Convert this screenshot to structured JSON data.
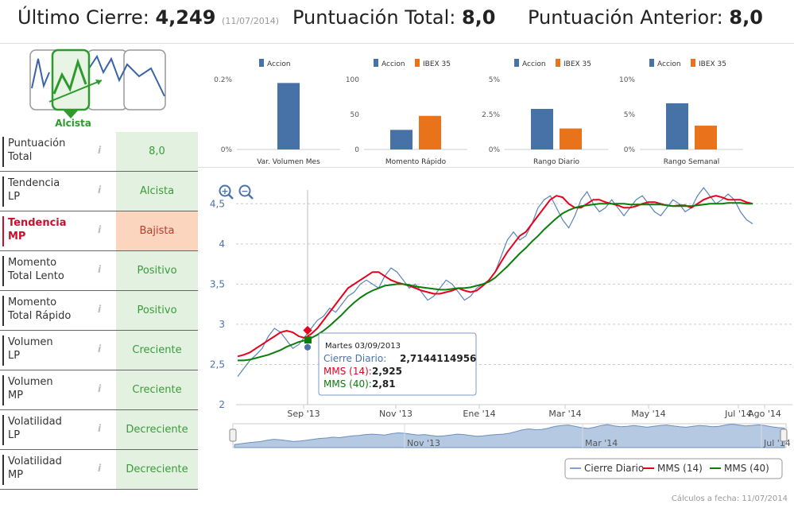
{
  "header": {
    "last_close_label": "Último Cierre:",
    "last_close_value": "4,249",
    "last_close_date": "(11/07/2014)",
    "total_score_label": "Puntuación Total:",
    "total_score_value": "8,0",
    "prev_score_label": "Puntuación Anterior:",
    "prev_score_value": "8,0"
  },
  "trend_card": {
    "label": "Alcista",
    "color": "#2e9a2e"
  },
  "indicators": [
    {
      "label1": "Puntuación",
      "label2": "Total",
      "value": "8,0",
      "highlight": false
    },
    {
      "label1": "Tendencia",
      "label2": "LP",
      "value": "Alcista",
      "highlight": false
    },
    {
      "label1": "Tendencia",
      "label2": "MP",
      "value": "Bajista",
      "highlight": true
    },
    {
      "label1": "Momento",
      "label2": "Total Lento",
      "value": "Positivo",
      "highlight": false
    },
    {
      "label1": "Momento",
      "label2": "Total Rápido",
      "value": "Positivo",
      "highlight": false
    },
    {
      "label1": "Volumen",
      "label2": "LP",
      "value": "Creciente",
      "highlight": false
    },
    {
      "label1": "Volumen",
      "label2": "MP",
      "value": "Creciente",
      "highlight": false
    },
    {
      "label1": "Volatilidad",
      "label2": "LP",
      "value": "Decreciente",
      "highlight": false
    },
    {
      "label1": "Volatilidad",
      "label2": "MP",
      "value": "Decreciente",
      "highlight": false
    }
  ],
  "info_icon": "i",
  "colors": {
    "accion": "#4672a8",
    "ibex": "#e8731a",
    "close": "#5b84b8",
    "mms14": "#e8001c",
    "mms40": "#0b7d0b"
  },
  "chart_data": [
    {
      "type": "bar",
      "title": "Var. Volumen Mes",
      "series": [
        {
          "name": "Accion",
          "values": [
            0.19
          ]
        }
      ],
      "ylim": [
        0,
        0.2
      ],
      "ticks": [
        "0.2%",
        "0%"
      ]
    },
    {
      "type": "bar",
      "title": "Momento Rápido",
      "series": [
        {
          "name": "Accion",
          "values": [
            28
          ]
        },
        {
          "name": "IBEX 35",
          "values": [
            48
          ]
        }
      ],
      "ylim": [
        0,
        100
      ],
      "ticks": [
        "100",
        "50",
        "0"
      ]
    },
    {
      "type": "bar",
      "title": "Rango Diario",
      "series": [
        {
          "name": "Accion",
          "values": [
            2.9
          ]
        },
        {
          "name": "IBEX 35",
          "values": [
            1.5
          ]
        }
      ],
      "ylim": [
        0,
        5
      ],
      "ticks": [
        "5%",
        "2.5%",
        "0%"
      ]
    },
    {
      "type": "bar",
      "title": "Rango Semanal",
      "series": [
        {
          "name": "Accion",
          "values": [
            6.6
          ]
        },
        {
          "name": "IBEX 35",
          "values": [
            3.4
          ]
        }
      ],
      "ylim": [
        0,
        10
      ],
      "ticks": [
        "10%",
        "5%",
        "0%"
      ]
    },
    {
      "type": "line",
      "ylim": [
        2,
        4.75
      ],
      "yticks": [
        "4,5",
        "4",
        "3,5",
        "3",
        "2,5",
        "2"
      ],
      "xticks": [
        "Sep '13",
        "Nov '13",
        "Ene '14",
        "Mar '14",
        "May '14",
        "Jul '14",
        "Ago '14"
      ],
      "navigator_labels": [
        "Nov '13",
        "Mar '14",
        "Jul '14"
      ],
      "series": [
        {
          "name": "Cierre Diario",
          "values": [
            2.35,
            2.45,
            2.55,
            2.62,
            2.7,
            2.85,
            2.95,
            2.9,
            2.8,
            2.7,
            2.75,
            2.85,
            2.95,
            3.05,
            3.1,
            3.2,
            3.15,
            3.25,
            3.35,
            3.4,
            3.5,
            3.55,
            3.5,
            3.45,
            3.6,
            3.7,
            3.65,
            3.55,
            3.45,
            3.5,
            3.4,
            3.3,
            3.35,
            3.45,
            3.55,
            3.5,
            3.4,
            3.3,
            3.35,
            3.45,
            3.5,
            3.55,
            3.65,
            3.85,
            4.05,
            4.15,
            4.05,
            4.1,
            4.25,
            4.45,
            4.55,
            4.6,
            4.45,
            4.3,
            4.2,
            4.35,
            4.55,
            4.65,
            4.5,
            4.4,
            4.45,
            4.55,
            4.45,
            4.35,
            4.45,
            4.55,
            4.6,
            4.5,
            4.4,
            4.35,
            4.45,
            4.55,
            4.5,
            4.4,
            4.45,
            4.6,
            4.7,
            4.6,
            4.5,
            4.55,
            4.62,
            4.55,
            4.4,
            4.3,
            4.25
          ]
        },
        {
          "name": "MMS (14)",
          "values": [
            2.6,
            2.62,
            2.65,
            2.7,
            2.75,
            2.8,
            2.85,
            2.9,
            2.92,
            2.9,
            2.85,
            2.83,
            2.88,
            2.95,
            3.05,
            3.15,
            3.25,
            3.35,
            3.45,
            3.5,
            3.55,
            3.6,
            3.65,
            3.65,
            3.6,
            3.55,
            3.52,
            3.5,
            3.48,
            3.45,
            3.42,
            3.4,
            3.38,
            3.38,
            3.4,
            3.42,
            3.45,
            3.42,
            3.4,
            3.42,
            3.48,
            3.55,
            3.65,
            3.78,
            3.9,
            4.0,
            4.1,
            4.15,
            4.25,
            4.35,
            4.45,
            4.55,
            4.6,
            4.58,
            4.5,
            4.45,
            4.45,
            4.5,
            4.55,
            4.55,
            4.52,
            4.5,
            4.48,
            4.45,
            4.45,
            4.47,
            4.5,
            4.52,
            4.52,
            4.5,
            4.48,
            4.47,
            4.48,
            4.48,
            4.45,
            4.5,
            4.55,
            4.58,
            4.6,
            4.58,
            4.55,
            4.55,
            4.55,
            4.52,
            4.5
          ]
        },
        {
          "name": "MMS (40)",
          "values": [
            2.55,
            2.55,
            2.56,
            2.58,
            2.6,
            2.62,
            2.65,
            2.68,
            2.72,
            2.75,
            2.78,
            2.8,
            2.83,
            2.87,
            2.92,
            2.98,
            3.05,
            3.12,
            3.2,
            3.27,
            3.33,
            3.38,
            3.42,
            3.45,
            3.48,
            3.49,
            3.5,
            3.5,
            3.49,
            3.47,
            3.46,
            3.45,
            3.44,
            3.43,
            3.43,
            3.44,
            3.45,
            3.45,
            3.46,
            3.48,
            3.5,
            3.53,
            3.58,
            3.65,
            3.72,
            3.8,
            3.88,
            3.95,
            4.03,
            4.1,
            4.18,
            4.25,
            4.32,
            4.38,
            4.42,
            4.45,
            4.47,
            4.48,
            4.49,
            4.5,
            4.5,
            4.5,
            4.5,
            4.5,
            4.49,
            4.49,
            4.49,
            4.49,
            4.49,
            4.49,
            4.48,
            4.47,
            4.47,
            4.47,
            4.47,
            4.48,
            4.49,
            4.5,
            4.5,
            4.5,
            4.51,
            4.51,
            4.51,
            4.5,
            4.5
          ]
        }
      ],
      "tooltip": {
        "date": "Martes 03/09/2013",
        "close_label": "Cierre Diario:",
        "close_value": "2,7144114956",
        "mms14_label": "MMS (14):",
        "mms14_value": "2,925",
        "mms40_label": "MMS (40):",
        "mms40_value": "2,81"
      },
      "legend": [
        "Cierre Diario",
        "MMS (14)",
        "MMS (40)"
      ]
    }
  ],
  "footer": "Cálculos a fecha: 11/07/2014"
}
